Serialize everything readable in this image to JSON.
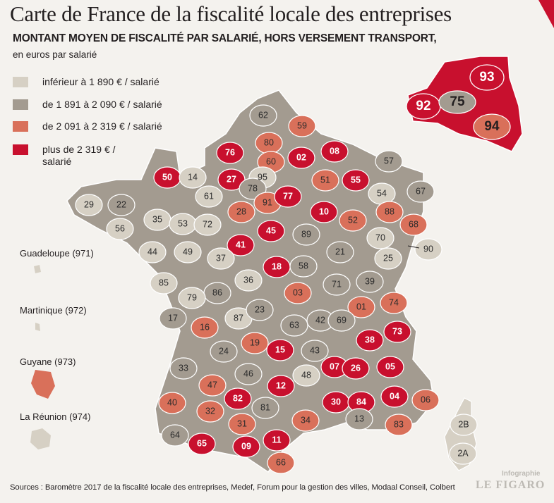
{
  "title": "Carte de France de la fiscalité locale des entreprises",
  "subtitle": "MONTANT MOYEN DE FISCALITÉ PAR SALARIÉ, HORS VERSEMENT TRANSPORT,",
  "unit": "en euros par salarié",
  "legend": [
    {
      "label": "inférieur à 1 890 € / salarié",
      "color": "#d6d0c4"
    },
    {
      "label": "de 1 891 à 2 090 € / salarié",
      "color": "#a39b90"
    },
    {
      "label": "de 2 091 à 2 319 € / salarié",
      "color": "#d9705a"
    },
    {
      "label": "plus de 2 319 € / salarié",
      "color": "#c8102e"
    }
  ],
  "overseas": [
    {
      "label": "Guadeloupe (971)",
      "tier": 0
    },
    {
      "label": "Martinique (972)",
      "tier": 0
    },
    {
      "label": "Guyane (973)",
      "tier": 2
    },
    {
      "label": "La Réunion (974)",
      "tier": 0
    }
  ],
  "departments": [
    {
      "code": "62",
      "tier": 1
    },
    {
      "code": "59",
      "tier": 2
    },
    {
      "code": "80",
      "tier": 2
    },
    {
      "code": "76",
      "tier": 3
    },
    {
      "code": "02",
      "tier": 3
    },
    {
      "code": "08",
      "tier": 3
    },
    {
      "code": "60",
      "tier": 2
    },
    {
      "code": "50",
      "tier": 3
    },
    {
      "code": "14",
      "tier": 0
    },
    {
      "code": "27",
      "tier": 3
    },
    {
      "code": "95",
      "tier": 0
    },
    {
      "code": "57",
      "tier": 1
    },
    {
      "code": "51",
      "tier": 2
    },
    {
      "code": "55",
      "tier": 3
    },
    {
      "code": "67",
      "tier": 1
    },
    {
      "code": "54",
      "tier": 0
    },
    {
      "code": "78",
      "tier": 1
    },
    {
      "code": "93",
      "tier": 3
    },
    {
      "code": "92",
      "tier": 3
    },
    {
      "code": "75",
      "tier": 1
    },
    {
      "code": "94",
      "tier": 2
    },
    {
      "code": "29",
      "tier": 0
    },
    {
      "code": "22",
      "tier": 1
    },
    {
      "code": "61",
      "tier": 0
    },
    {
      "code": "91",
      "tier": 2
    },
    {
      "code": "77",
      "tier": 3
    },
    {
      "code": "28",
      "tier": 2
    },
    {
      "code": "10",
      "tier": 3
    },
    {
      "code": "88",
      "tier": 2
    },
    {
      "code": "35",
      "tier": 0
    },
    {
      "code": "53",
      "tier": 0
    },
    {
      "code": "72",
      "tier": 0
    },
    {
      "code": "56",
      "tier": 0
    },
    {
      "code": "52",
      "tier": 2
    },
    {
      "code": "68",
      "tier": 2
    },
    {
      "code": "45",
      "tier": 3
    },
    {
      "code": "89",
      "tier": 1
    },
    {
      "code": "70",
      "tier": 0
    },
    {
      "code": "44",
      "tier": 0
    },
    {
      "code": "49",
      "tier": 0
    },
    {
      "code": "41",
      "tier": 3
    },
    {
      "code": "21",
      "tier": 1
    },
    {
      "code": "90",
      "tier": 0
    },
    {
      "code": "37",
      "tier": 0
    },
    {
      "code": "25",
      "tier": 0
    },
    {
      "code": "18",
      "tier": 3
    },
    {
      "code": "58",
      "tier": 1
    },
    {
      "code": "85",
      "tier": 0
    },
    {
      "code": "86",
      "tier": 1
    },
    {
      "code": "36",
      "tier": 0
    },
    {
      "code": "71",
      "tier": 1
    },
    {
      "code": "39",
      "tier": 1
    },
    {
      "code": "79",
      "tier": 0
    },
    {
      "code": "03",
      "tier": 2
    },
    {
      "code": "01",
      "tier": 2
    },
    {
      "code": "74",
      "tier": 2
    },
    {
      "code": "17",
      "tier": 1
    },
    {
      "code": "87",
      "tier": 0
    },
    {
      "code": "23",
      "tier": 1
    },
    {
      "code": "63",
      "tier": 1
    },
    {
      "code": "42",
      "tier": 1
    },
    {
      "code": "69",
      "tier": 1
    },
    {
      "code": "16",
      "tier": 2
    },
    {
      "code": "73",
      "tier": 3
    },
    {
      "code": "19",
      "tier": 2
    },
    {
      "code": "38",
      "tier": 3
    },
    {
      "code": "24",
      "tier": 1
    },
    {
      "code": "15",
      "tier": 3
    },
    {
      "code": "43",
      "tier": 1
    },
    {
      "code": "33",
      "tier": 1
    },
    {
      "code": "07",
      "tier": 3
    },
    {
      "code": "26",
      "tier": 3
    },
    {
      "code": "05",
      "tier": 3
    },
    {
      "code": "48",
      "tier": 0
    },
    {
      "code": "46",
      "tier": 1
    },
    {
      "code": "47",
      "tier": 2
    },
    {
      "code": "12",
      "tier": 3
    },
    {
      "code": "40",
      "tier": 2
    },
    {
      "code": "82",
      "tier": 3
    },
    {
      "code": "81",
      "tier": 1
    },
    {
      "code": "30",
      "tier": 3
    },
    {
      "code": "84",
      "tier": 3
    },
    {
      "code": "04",
      "tier": 3
    },
    {
      "code": "06",
      "tier": 2
    },
    {
      "code": "32",
      "tier": 2
    },
    {
      "code": "13",
      "tier": 1
    },
    {
      "code": "83",
      "tier": 2
    },
    {
      "code": "34",
      "tier": 2
    },
    {
      "code": "31",
      "tier": 2
    },
    {
      "code": "64",
      "tier": 1
    },
    {
      "code": "65",
      "tier": 3
    },
    {
      "code": "09",
      "tier": 3
    },
    {
      "code": "11",
      "tier": 3
    },
    {
      "code": "66",
      "tier": 2
    },
    {
      "code": "2B",
      "tier": 0
    },
    {
      "code": "2A",
      "tier": 0
    }
  ],
  "source": "Sources : Baromètre 2017 de la fiscalité locale des entreprises, Medef, Forum pour la gestion des villes, Modaal Conseil, Colbert",
  "credit_small": "Infographie",
  "credit_brand": "LE FIGARO"
}
